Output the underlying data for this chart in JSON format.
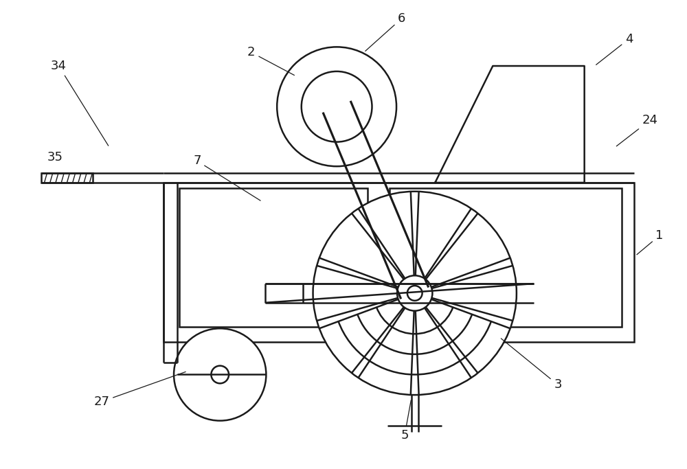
{
  "bg_color": "#ffffff",
  "line_color": "#1a1a1a",
  "lw": 1.8,
  "fs": 13,
  "figsize": [
    10.0,
    6.83
  ],
  "dpi": 100
}
